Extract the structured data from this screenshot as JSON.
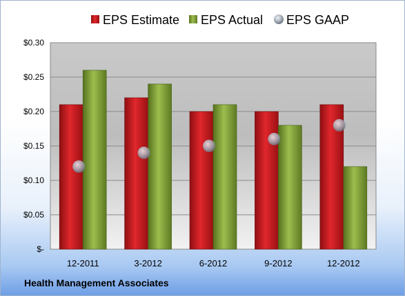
{
  "footer": {
    "company": "Health Management Associates"
  },
  "colors": {
    "estimate": "#c0161b",
    "actual": "#7a9a32",
    "gaap": "#b9bfc8"
  },
  "chart_data": {
    "type": "bar",
    "categories": [
      "12-2011",
      "3-2012",
      "6-2012",
      "9-2012",
      "12-2012"
    ],
    "series": [
      {
        "name": "EPS Estimate",
        "values": [
          0.21,
          0.22,
          0.2,
          0.2,
          0.21
        ]
      },
      {
        "name": "EPS Actual",
        "values": [
          0.26,
          0.24,
          0.21,
          0.18,
          0.12
        ]
      },
      {
        "name": "EPS GAAP",
        "type": "scatter",
        "values": [
          0.12,
          0.14,
          0.15,
          0.16,
          0.18
        ]
      }
    ],
    "ylim": [
      0,
      0.3
    ],
    "yticks": [
      0,
      0.05,
      0.1,
      0.15,
      0.2,
      0.25,
      0.3
    ],
    "ytick_labels": [
      "$-",
      "$0.05",
      "$0.10",
      "$0.15",
      "$0.20",
      "$0.25",
      "$0.30"
    ],
    "grid": true,
    "legend_position": "top"
  }
}
